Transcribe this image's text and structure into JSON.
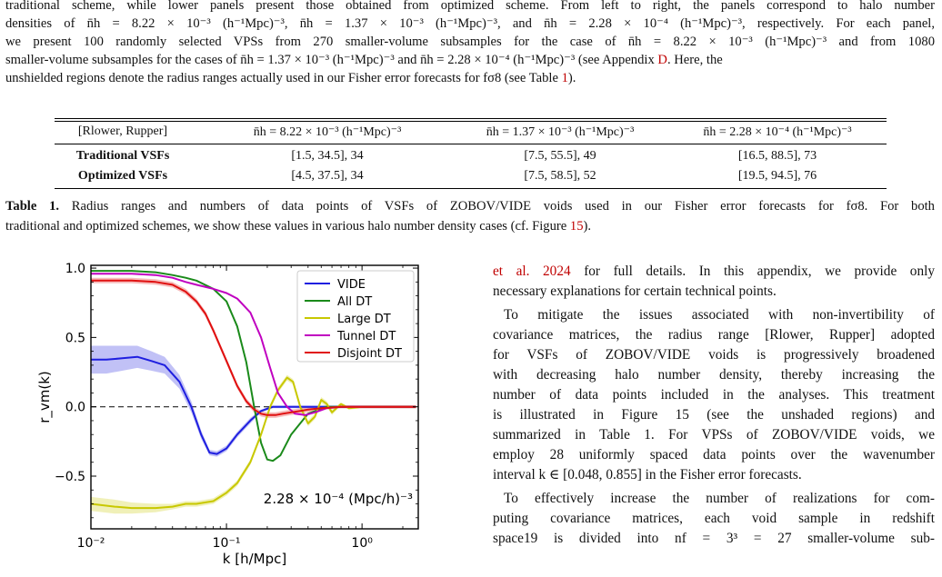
{
  "figure_caption_cont": [
    "traditional scheme, while lower panels present those obtained from optimized scheme. From left to right, the panels correspond to halo number",
    "densities of n̄h = 8.22 × 10⁻³ (h⁻¹Mpc)⁻³, n̄h = 1.37 × 10⁻³ (h⁻¹Mpc)⁻³, and n̄h = 2.28 × 10⁻⁴ (h⁻¹Mpc)⁻³, respectively. For each panel,",
    "we present 100 randomly selected VPSs from 270 smaller-volume subsamples for the case of n̄h = 8.22 × 10⁻³ (h⁻¹Mpc)⁻³ and from 1080",
    "smaller-volume subsamples for the cases of n̄h = 1.37 × 10⁻³ (h⁻¹Mpc)⁻³ and n̄h = 2.28 × 10⁻⁴ (h⁻¹Mpc)⁻³ (see Appendix",
    "unshielded regions denote the radius ranges actually used in our Fisher error forecasts for fσ8 (see Table"
  ],
  "caption_links": {
    "appendix": "D",
    "table_ref": "1",
    "figure_ref": "15"
  },
  "caption_tails": {
    "line4": ". Here, the",
    "line5": ")."
  },
  "table": {
    "headers": [
      "[Rlower, Rupper]",
      "n̄h = 8.22 × 10⁻³ (h⁻¹Mpc)⁻³",
      "n̄h = 1.37 × 10⁻³ (h⁻¹Mpc)⁻³",
      "n̄h = 2.28 × 10⁻⁴ (h⁻¹Mpc)⁻³"
    ],
    "rows": [
      [
        "Traditional VSFs",
        "[1.5, 34.5], 34",
        "[7.5, 55.5], 49",
        "[16.5, 88.5], 73"
      ],
      [
        "Optimized VSFs",
        "[4.5, 37.5], 34",
        "[7.5, 58.5], 52",
        "[19.5, 94.5], 76"
      ]
    ]
  },
  "table_caption": {
    "label": "Table 1.",
    "line1": "Radius ranges and numbers of data points of VSFs of ZOBOV/VIDE voids used in our Fisher error forecasts for fσ8. For both",
    "line2": "traditional and optimized schemes, we show these values in various halo number density cases (cf. Figure",
    "line2_tail": ")."
  },
  "right_column": {
    "lines": [
      "et al. 2024 for full details. In this appendix, we provide only",
      "necessary explanations for certain technical points.",
      "To mitigate the issues associated with non-invertibility of",
      "covariance matrices, the radius range [Rlower, Rupper] adopted",
      "for VSFs of ZOBOV/VIDE voids is progressively broadened",
      "with decreasing halo number density, thereby increasing the",
      "number of data points included in the analyses. This treatment",
      "is illustrated in Figure 15 (see the unshaded regions) and",
      "summarized in Table 1. For VPSs of ZOBOV/VIDE voids, we",
      "employ 28 uniformly spaced data points over the wavenumber",
      "interval k ∈ [0.048, 0.855] in the Fisher error forecasts.",
      "To effectively increase the number of realizations for com-",
      "puting covariance matrices, each void sample in redshift",
      "space19 is divided into nf = 3³ = 27 smaller-volume sub-"
    ]
  },
  "chart_data": {
    "type": "line",
    "xlabel": "k [h/Mpc]",
    "ylabel": "r_vm(k)",
    "xscale": "log",
    "xlim": [
      0.01,
      2.6
    ],
    "ylim": [
      -0.88,
      1.02
    ],
    "xticks": [
      "10⁻²",
      "10⁻¹",
      "10⁰"
    ],
    "yticks": [
      "1.0",
      "0.5",
      "0.0",
      "−0.5"
    ],
    "annotation": "2.28 × 10⁻⁴ (Mpc/h)⁻³",
    "legend_position": "top-right",
    "series": [
      {
        "name": "VIDE",
        "color": "#1f1fe0",
        "x": [
          0.01,
          0.013,
          0.017,
          0.022,
          0.028,
          0.035,
          0.045,
          0.055,
          0.065,
          0.075,
          0.085,
          0.1,
          0.12,
          0.15,
          0.18,
          0.22,
          0.28,
          0.35,
          0.45,
          0.6,
          0.8,
          1.0,
          1.5,
          2.5
        ],
        "y": [
          0.34,
          0.34,
          0.35,
          0.36,
          0.33,
          0.3,
          0.18,
          0.0,
          -0.2,
          -0.33,
          -0.34,
          -0.3,
          -0.2,
          -0.1,
          -0.03,
          0.0,
          0.0,
          0.0,
          0.0,
          0.0,
          0.0,
          0.0,
          0.0,
          0.0
        ],
        "band": [
          0.1,
          0.1,
          0.09,
          0.08,
          0.07,
          0.06,
          0.05,
          0.04,
          0.03,
          0.02,
          0.02,
          0.02,
          0.02,
          0.02,
          0.01,
          0.01,
          0.01,
          0.01,
          0.01,
          0.01,
          0.01,
          0.01,
          0.01,
          0.01
        ]
      },
      {
        "name": "All DT",
        "color": "#1a8a1a",
        "x": [
          0.01,
          0.015,
          0.02,
          0.03,
          0.04,
          0.05,
          0.06,
          0.08,
          0.1,
          0.12,
          0.14,
          0.16,
          0.18,
          0.2,
          0.22,
          0.25,
          0.3,
          0.4,
          0.55,
          0.7,
          1.0,
          1.5,
          2.5
        ],
        "y": [
          0.98,
          0.98,
          0.98,
          0.97,
          0.95,
          0.93,
          0.91,
          0.85,
          0.76,
          0.58,
          0.32,
          0.0,
          -0.26,
          -0.38,
          -0.39,
          -0.35,
          -0.2,
          -0.05,
          0.0,
          0.0,
          0.0,
          0.0,
          0.0
        ]
      },
      {
        "name": "Large DT",
        "color": "#c8c800",
        "x": [
          0.01,
          0.015,
          0.02,
          0.03,
          0.04,
          0.05,
          0.06,
          0.08,
          0.1,
          0.12,
          0.15,
          0.18,
          0.21,
          0.24,
          0.28,
          0.31,
          0.35,
          0.4,
          0.45,
          0.5,
          0.55,
          0.6,
          0.7,
          0.8,
          1.0,
          1.5,
          2.5
        ],
        "y": [
          -0.7,
          -0.72,
          -0.73,
          -0.73,
          -0.72,
          -0.7,
          -0.7,
          -0.68,
          -0.62,
          -0.55,
          -0.4,
          -0.2,
          0.0,
          0.12,
          0.21,
          0.18,
          0.0,
          -0.12,
          -0.07,
          0.05,
          0.02,
          -0.04,
          0.02,
          -0.01,
          0.0,
          0.0,
          0.0
        ],
        "band": [
          0.05,
          0.05,
          0.04,
          0.03,
          0.02,
          0.02,
          0.02,
          0.02,
          0.02,
          0.02,
          0.02,
          0.02,
          0.02,
          0.02,
          0.02,
          0.02,
          0.02,
          0.02,
          0.02,
          0.02,
          0.02,
          0.02,
          0.01,
          0.01,
          0.01,
          0.01,
          0.01
        ]
      },
      {
        "name": "Tunnel DT",
        "color": "#c000c0",
        "x": [
          0.01,
          0.015,
          0.02,
          0.03,
          0.04,
          0.05,
          0.06,
          0.08,
          0.1,
          0.12,
          0.15,
          0.18,
          0.21,
          0.24,
          0.28,
          0.32,
          0.38,
          0.45,
          0.55,
          0.7,
          1.0,
          1.5,
          2.5
        ],
        "y": [
          0.96,
          0.96,
          0.96,
          0.95,
          0.93,
          0.9,
          0.88,
          0.85,
          0.82,
          0.78,
          0.68,
          0.5,
          0.28,
          0.1,
          0.0,
          -0.05,
          -0.06,
          -0.04,
          -0.01,
          0.0,
          0.0,
          0.0,
          0.0
        ]
      },
      {
        "name": "Disjoint DT",
        "color": "#e01010",
        "x": [
          0.01,
          0.015,
          0.02,
          0.03,
          0.04,
          0.05,
          0.06,
          0.07,
          0.08,
          0.1,
          0.12,
          0.14,
          0.16,
          0.18,
          0.2,
          0.23,
          0.26,
          0.3,
          0.35,
          0.4,
          0.5,
          0.7,
          1.0,
          1.5,
          2.5
        ],
        "y": [
          0.91,
          0.91,
          0.91,
          0.9,
          0.88,
          0.83,
          0.76,
          0.67,
          0.55,
          0.33,
          0.15,
          0.04,
          -0.02,
          -0.05,
          -0.06,
          -0.06,
          -0.05,
          -0.04,
          -0.03,
          -0.02,
          -0.01,
          0.0,
          0.0,
          0.0,
          0.0
        ],
        "band": [
          0.02,
          0.02,
          0.02,
          0.02,
          0.02,
          0.02,
          0.02,
          0.02,
          0.02,
          0.02,
          0.02,
          0.02,
          0.02,
          0.02,
          0.02,
          0.02,
          0.02,
          0.02,
          0.02,
          0.02,
          0.01,
          0.01,
          0.01,
          0.01,
          0.01
        ]
      }
    ]
  }
}
